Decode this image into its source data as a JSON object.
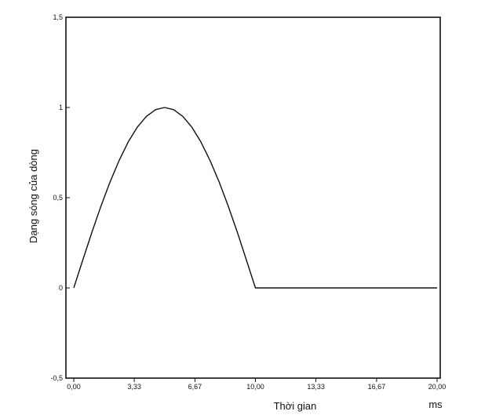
{
  "chart_data": {
    "type": "line",
    "xlabel": "Thời gian",
    "x_unit": "ms",
    "ylabel": "Dạng sóng của dòng",
    "xlim": [
      0,
      20
    ],
    "ylim": [
      -0.5,
      1.5
    ],
    "x_ticks": [
      0,
      3.33,
      6.67,
      10,
      13.33,
      16.67,
      20
    ],
    "x_tick_labels": [
      "0,00",
      "3,33",
      "6,67",
      "10,00",
      "13,33",
      "16,67",
      "20,00"
    ],
    "y_ticks": [
      -0.5,
      0,
      0.5,
      1,
      1.5
    ],
    "y_tick_labels": [
      "-0,5",
      "0",
      "0,5",
      "1",
      "1,5"
    ],
    "grid": false,
    "series": [
      {
        "x": [
          0,
          0.5,
          1,
          1.5,
          2,
          2.5,
          3,
          3.5,
          4,
          4.5,
          5,
          5.5,
          6,
          6.5,
          7,
          7.5,
          8,
          8.5,
          9,
          9.5,
          10,
          11,
          12,
          13,
          14,
          15,
          16,
          17,
          18,
          19,
          20
        ],
        "values": [
          0,
          0.156,
          0.309,
          0.454,
          0.588,
          0.707,
          0.809,
          0.891,
          0.951,
          0.988,
          1,
          0.988,
          0.951,
          0.891,
          0.809,
          0.707,
          0.588,
          0.454,
          0.309,
          0.156,
          0,
          0,
          0,
          0,
          0,
          0,
          0,
          0,
          0,
          0,
          0
        ],
        "color": "#111111"
      }
    ]
  }
}
